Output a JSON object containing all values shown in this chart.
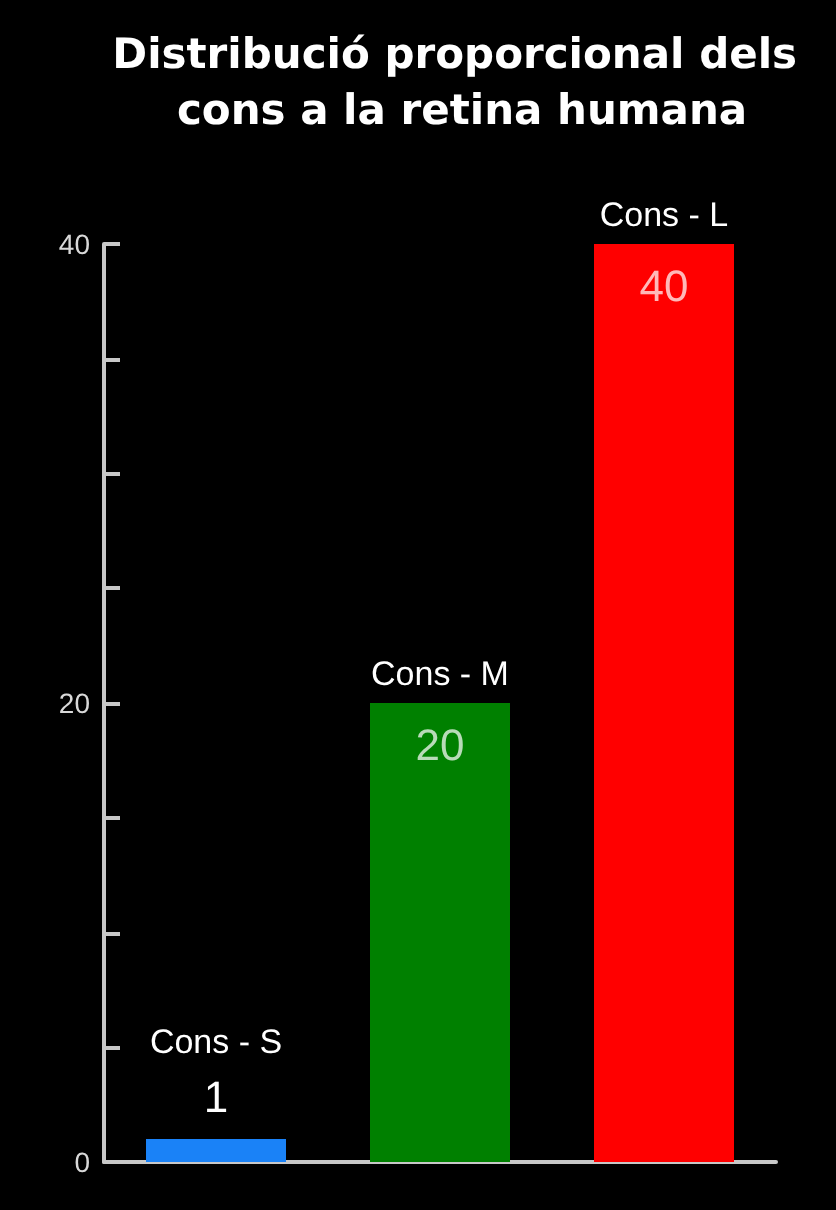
{
  "chart_data": {
    "type": "bar",
    "title": "Distribució proporcional dels cons a la retina humana",
    "categories": [
      "Cons - S",
      "Cons - M",
      "Cons - L"
    ],
    "values": [
      1,
      20,
      40
    ],
    "colors": [
      "#1a82f7",
      "#008000",
      "#ff0000"
    ],
    "ylim": [
      0,
      40
    ],
    "yticks": [
      0,
      {
        "value": 5,
        "label": null
      },
      {
        "value": 10,
        "label": null
      },
      {
        "value": 15,
        "label": null
      },
      20,
      {
        "value": 25,
        "label": null
      },
      {
        "value": 30,
        "label": null
      },
      {
        "value": 35,
        "label": null
      },
      40
    ],
    "grid": false,
    "data_labels": true
  }
}
